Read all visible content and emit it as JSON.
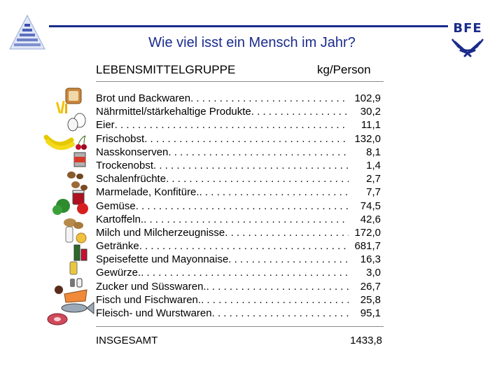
{
  "title": "Wie viel isst ein Mensch im Jahr?",
  "header": {
    "group_label": "LEBENSMITTELGRUPPE",
    "unit_label": "kg/Person"
  },
  "rows": [
    {
      "label": "Brot und Backwaren",
      "value": "102,9"
    },
    {
      "label": "Nährmittel/stärkehaltige Produkte",
      "value": "30,2"
    },
    {
      "label": "Eier",
      "value": "11,1"
    },
    {
      "label": "Frischobst",
      "value": "132,0"
    },
    {
      "label": "Nasskonserven",
      "value": "8,1"
    },
    {
      "label": "Trockenobst",
      "value": "1,4"
    },
    {
      "label": "Schalenfrüchte",
      "value": "2,7"
    },
    {
      "label": "Marmelade, Konfitüre.",
      "value": "7,7"
    },
    {
      "label": "Gemüse",
      "value": "74,5"
    },
    {
      "label": "Kartoffeln.",
      "value": "42,6"
    },
    {
      "label": "Milch und Milcherzeugnisse",
      "value": "172,0"
    },
    {
      "label": "Getränke",
      "value": "681,7"
    },
    {
      "label": "Speisefette und Mayonnaise",
      "value": "16,3"
    },
    {
      "label": "Gewürze.",
      "value": "3,0"
    },
    {
      "label": "Zucker und Süsswaren.",
      "value": "26,7"
    },
    {
      "label": "Fisch und Fischwaren.",
      "value": "25,8"
    },
    {
      "label": "Fleisch- und Wurstwaren",
      "value": "95,1"
    }
  ],
  "total": {
    "label": "INSGESAMT",
    "value": "1433,8"
  },
  "logos": {
    "right_text": "BFE"
  },
  "colors": {
    "accent": "#1a2b8c",
    "rule": "#8a8a8a"
  }
}
